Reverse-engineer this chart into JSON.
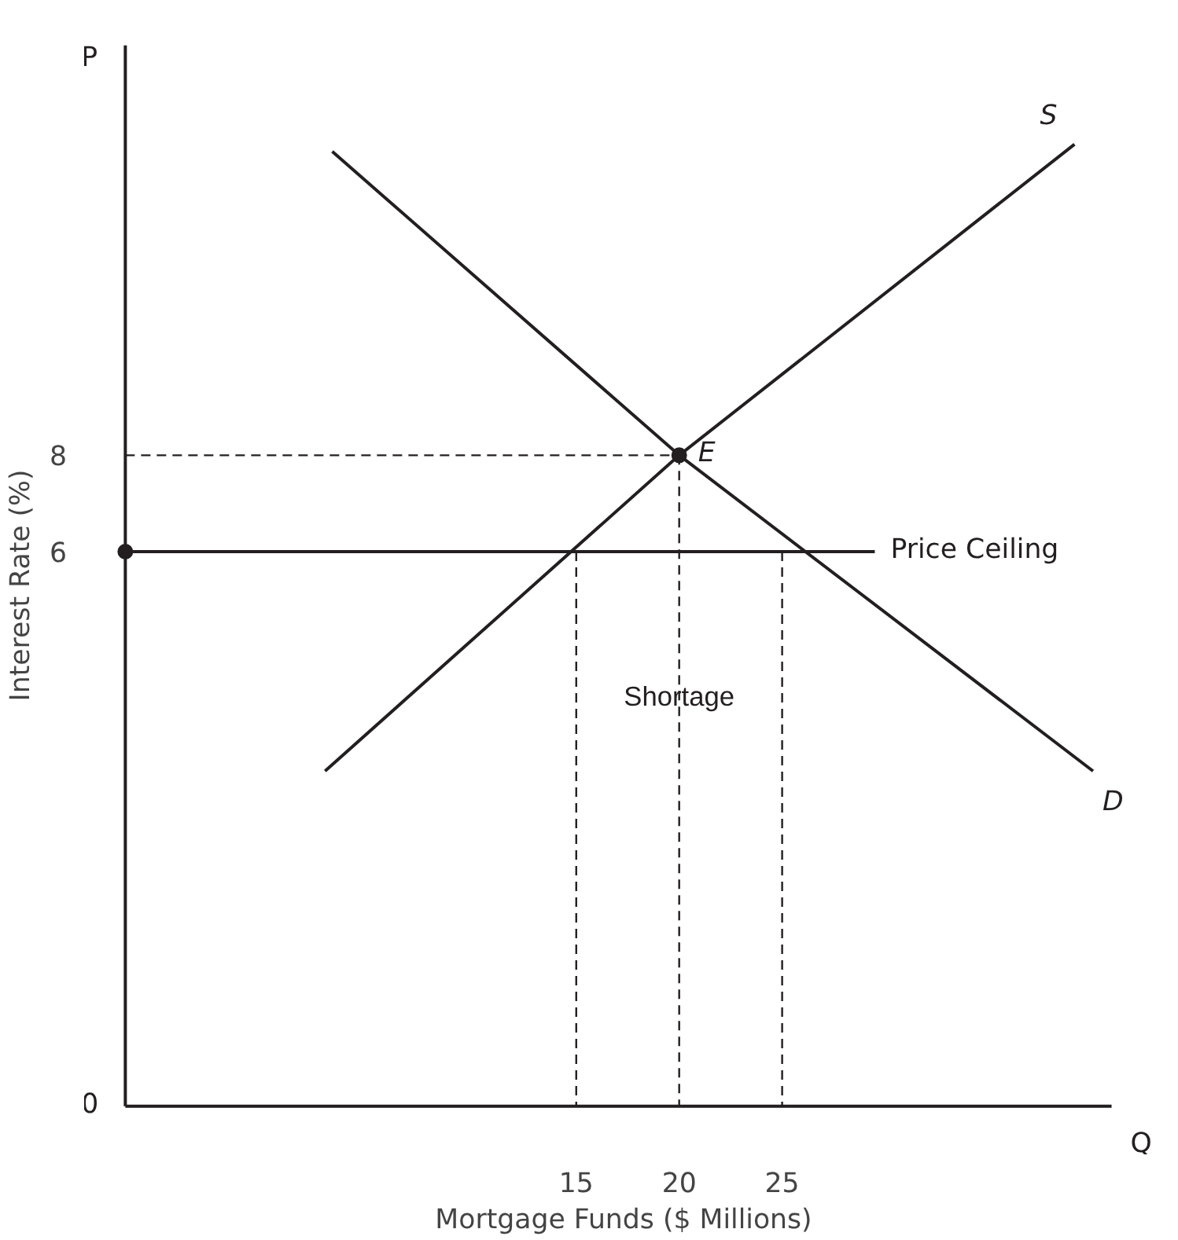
{
  "chart_data": {
    "type": "line",
    "xlabel": "Mortgage Funds ($ Millions)",
    "ylabel": "Interest Rate (%)",
    "xlim": [
      -6.9,
      41
    ],
    "ylim": [
      -5.5,
      16.5
    ],
    "xticks": [
      15,
      20,
      25
    ],
    "yticks": [
      6,
      8
    ],
    "grid": false,
    "series": [
      {
        "name": "S",
        "color": "#231f20",
        "x": [
          2.8,
          20,
          39.2
        ],
        "values": [
          1.45,
          8,
          14.45
        ]
      },
      {
        "name": "D",
        "color": "#231f20",
        "x": [
          3.15,
          20,
          40.1
        ],
        "values": [
          14.3,
          8,
          1.45
        ]
      },
      {
        "name": "Price Ceiling",
        "color": "#231f20",
        "x": [
          -6.9,
          29.5
        ],
        "values": [
          6,
          6
        ]
      },
      {
        "type": "line",
        "line_style": "dashed",
        "color": "#231f20",
        "x": [
          -6.9,
          20
        ],
        "values": [
          8,
          8
        ]
      },
      {
        "type": "line",
        "line_style": "dashed",
        "color": "#231f20",
        "x": [
          15,
          15
        ],
        "values": [
          6,
          -5.5
        ]
      },
      {
        "type": "line",
        "line_style": "dashed",
        "color": "#231f20",
        "x": [
          20,
          20
        ],
        "values": [
          8,
          -5.5
        ]
      },
      {
        "type": "line",
        "line_style": "dashed",
        "color": "#231f20",
        "x": [
          25,
          25
        ],
        "values": [
          6,
          -5.5
        ]
      },
      {
        "type": "scatter",
        "marker": "circle",
        "name": "E",
        "color": "#231f20",
        "x": [
          20
        ],
        "values": [
          8
        ]
      },
      {
        "type": "scatter",
        "marker": "circle",
        "color": "#231f20",
        "x": [
          -6.9
        ],
        "values": [
          6
        ]
      }
    ],
    "annotations": [
      "P",
      "Q",
      "0",
      {
        "text": "Shortage",
        "x": 20,
        "y": 3.0
      }
    ]
  }
}
